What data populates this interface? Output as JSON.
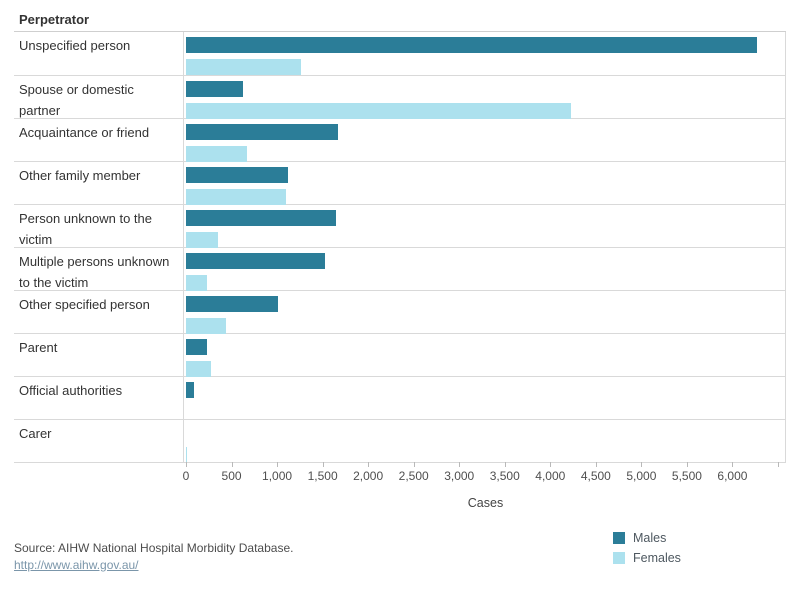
{
  "header": {
    "title": "Perpetrator"
  },
  "axis": {
    "label": "Cases",
    "max": 6577,
    "tick_values": [
      0,
      500,
      1000,
      1500,
      2000,
      2500,
      3000,
      3500,
      4000,
      4500,
      5000,
      5500,
      6000,
      6500
    ],
    "tick_labels": [
      "0",
      "500",
      "1,000",
      "1,500",
      "2,000",
      "2,500",
      "3,000",
      "3,500",
      "4,000",
      "4,500",
      "5,000",
      "5,500",
      "6,000",
      ""
    ]
  },
  "legend": {
    "items": [
      {
        "label": "Males",
        "color": "#2b7d98"
      },
      {
        "label": "Females",
        "color": "#ace1ee"
      }
    ]
  },
  "source": {
    "text": "Source: AIHW National Hospital Morbidity Database.",
    "link": "http://www.aihw.gov.au/"
  },
  "chart_data": {
    "type": "bar",
    "orientation": "horizontal",
    "title": "Perpetrator",
    "xlabel": "Cases",
    "xlim": [
      0,
      6577
    ],
    "grid": "row-separators",
    "legend_position": "bottom-right",
    "categories": [
      "Unspecified person",
      "Spouse or domestic partner",
      "Acquaintance or friend",
      "Other family member",
      "Person unknown to the victim",
      "Multiple persons unknown to the victim",
      "Other specified person",
      "Parent",
      "Official authorities",
      "Carer"
    ],
    "series": [
      {
        "name": "Males",
        "color": "#2b7d98",
        "values": [
          6250,
          620,
          1665,
          1120,
          1640,
          1520,
          1010,
          225,
          90,
          0
        ]
      },
      {
        "name": "Females",
        "color": "#ace1ee",
        "values": [
          1260,
          4215,
          665,
          1090,
          355,
          235,
          440,
          270,
          0,
          15
        ]
      }
    ]
  }
}
